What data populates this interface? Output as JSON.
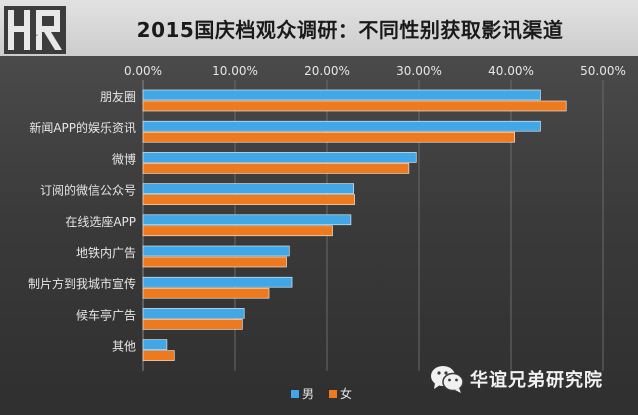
{
  "header": {
    "logo_text": "HR",
    "title": "2015国庆档观众调研：不同性别获取影讯渠道"
  },
  "watermark": {
    "text": "华谊兄弟研究院",
    "icon": "wechat-icon"
  },
  "colors": {
    "male": "#41a7e6",
    "female": "#ee7a1f",
    "axis_text": "#e6e6e6",
    "grid": "#6a6a6a"
  },
  "chart_data": {
    "type": "bar",
    "orientation": "horizontal",
    "title": "2015国庆档观众调研：不同性别获取影讯渠道",
    "categories": [
      "朋友圈",
      "新闻APP的娱乐资讯",
      "微博",
      "订阅的微信公众号",
      "在线选座APP",
      "地铁内广告",
      "制片方到我城市宣传",
      "候车亭广告",
      "其他"
    ],
    "series": [
      {
        "name": "男",
        "values": [
          43.2,
          43.2,
          29.7,
          22.9,
          22.6,
          15.9,
          16.2,
          11.0,
          2.6
        ]
      },
      {
        "name": "女",
        "values": [
          46.0,
          40.4,
          28.9,
          23.0,
          20.6,
          15.6,
          13.7,
          10.8,
          3.4
        ]
      }
    ],
    "ticks": [
      "0.00%",
      "10.00%",
      "20.00%",
      "30.00%",
      "40.00%",
      "50.00%"
    ],
    "xlim": [
      0,
      50
    ],
    "xaxis_position": "top",
    "grid": true,
    "legend": [
      "男",
      "女"
    ],
    "legend_position": "bottom"
  }
}
